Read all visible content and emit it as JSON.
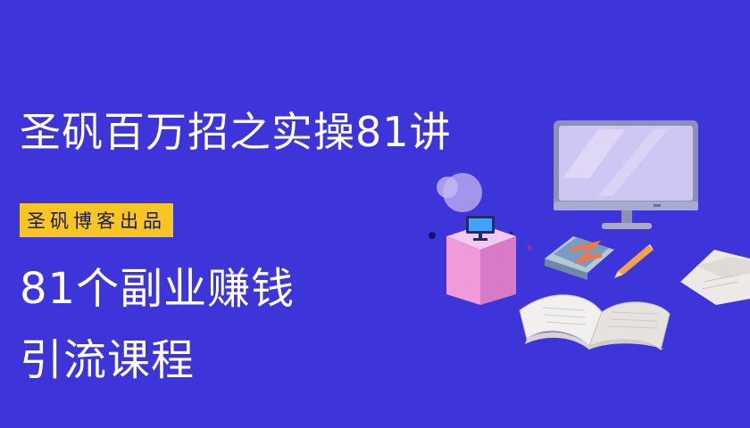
{
  "banner": {
    "title": "圣矾百万招之实操81讲",
    "tag": "圣矾博客出品",
    "line1": "81个副业赚钱",
    "line2": "引流课程"
  },
  "colors": {
    "background": "#3d35d9",
    "tag_bg": "#f7c623",
    "text": "#ffffff"
  },
  "illustration": {
    "icons": [
      "monitor-icon",
      "book-icon",
      "pencil-icon",
      "pedestal-icon",
      "paper-icon"
    ]
  }
}
